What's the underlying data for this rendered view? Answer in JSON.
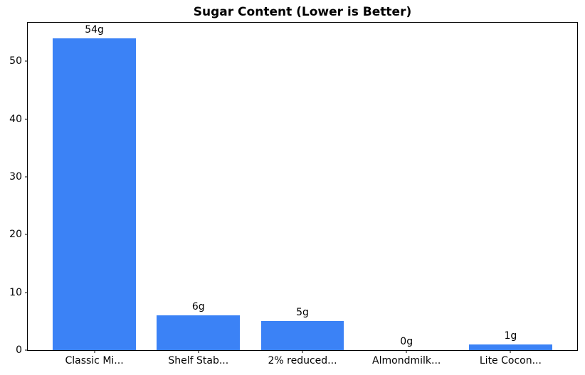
{
  "chart_data": {
    "type": "bar",
    "title": "Sugar Content (Lower is Better)",
    "categories": [
      "Classic Mi...",
      "Shelf Stab...",
      "2% reduced...",
      "Almondmilk...",
      "Lite Cocon..."
    ],
    "values": [
      54,
      6,
      5,
      0,
      1
    ],
    "bar_labels": [
      "54g",
      "6g",
      "5g",
      "0g",
      "1g"
    ],
    "xlabel": "",
    "ylabel": "",
    "yticks": [
      0,
      10,
      20,
      30,
      40,
      50
    ],
    "ylim": [
      0,
      56.7
    ],
    "grid": false,
    "legend": "none",
    "bar_color": "#3b82f6",
    "frame_color": "#000000",
    "background_color": "#ffffff",
    "text_color": "#000000"
  }
}
